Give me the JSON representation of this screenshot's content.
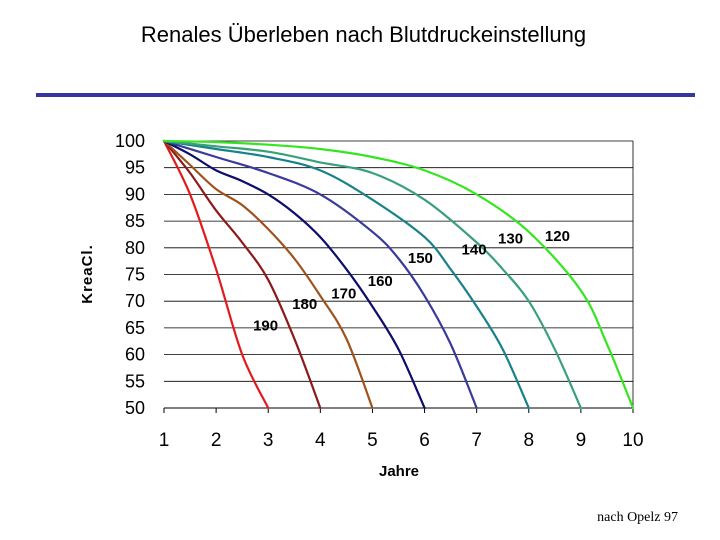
{
  "title": "Renales Überleben nach Blutdruckeinstellung",
  "source_note": "nach Opelz 97",
  "colors": {
    "title_rule": "#3636a0",
    "gridline": "#000000"
  },
  "chart_data": {
    "type": "line",
    "title": "",
    "xlabel": "Jahre",
    "ylabel": "KreaCl.",
    "xlim": [
      1,
      10
    ],
    "ylim": [
      50,
      100
    ],
    "x_ticks": [
      "1",
      "2",
      "3",
      "4",
      "5",
      "6",
      "7",
      "8",
      "9",
      "10"
    ],
    "y_ticks": [
      "100",
      "95",
      "90",
      "85",
      "80",
      "75",
      "70",
      "65",
      "60",
      "55",
      "50"
    ],
    "grid": "horizontal",
    "series": [
      {
        "name": "190",
        "color": "#e31a1c",
        "x": [
          1,
          1.5,
          2,
          2.5,
          3
        ],
        "y": [
          100,
          90,
          76,
          60,
          50
        ]
      },
      {
        "name": "180",
        "color": "#8b1a1a",
        "x": [
          1,
          1.5,
          2,
          2.5,
          3,
          3.5,
          4
        ],
        "y": [
          100,
          94,
          87,
          81,
          74,
          63,
          50
        ]
      },
      {
        "name": "170",
        "color": "#a0521b",
        "x": [
          1,
          1.5,
          2,
          2.5,
          3,
          3.5,
          4,
          4.5,
          5
        ],
        "y": [
          100,
          95.5,
          91,
          88,
          83.5,
          78,
          71,
          63,
          50
        ]
      },
      {
        "name": "160",
        "color": "#0d0d6b",
        "x": [
          1,
          1.5,
          2,
          2.5,
          3,
          3.5,
          4,
          4.5,
          5,
          5.5,
          6
        ],
        "y": [
          100,
          97.5,
          94.5,
          92.5,
          90,
          86.5,
          82,
          76,
          69,
          61,
          50
        ]
      },
      {
        "name": "150",
        "color": "#3a3a9c",
        "x": [
          1,
          2,
          3,
          4,
          5,
          5.5,
          6,
          6.5,
          7
        ],
        "y": [
          100,
          97,
          94,
          90,
          83,
          78,
          71,
          62,
          50
        ]
      },
      {
        "name": "140",
        "color": "#178289",
        "x": [
          1,
          2,
          3,
          4,
          5,
          6,
          6.5,
          7,
          7.5,
          8
        ],
        "y": [
          100,
          98.5,
          97,
          94.5,
          89,
          82,
          76,
          69,
          61,
          50
        ]
      },
      {
        "name": "130",
        "color": "#3aa07a",
        "x": [
          1,
          2,
          3,
          4,
          5,
          6,
          7,
          7.5,
          8,
          8.5,
          9
        ],
        "y": [
          100,
          99,
          98,
          96,
          94,
          89,
          81,
          76,
          70,
          61,
          50
        ]
      },
      {
        "name": "120",
        "color": "#33e61f",
        "x": [
          1,
          2,
          3,
          4,
          5,
          6,
          7,
          8,
          9,
          9.5,
          10
        ],
        "y": [
          100,
          99.8,
          99.3,
          98.5,
          97,
          94.5,
          90,
          83,
          72,
          62,
          50
        ]
      }
    ]
  }
}
